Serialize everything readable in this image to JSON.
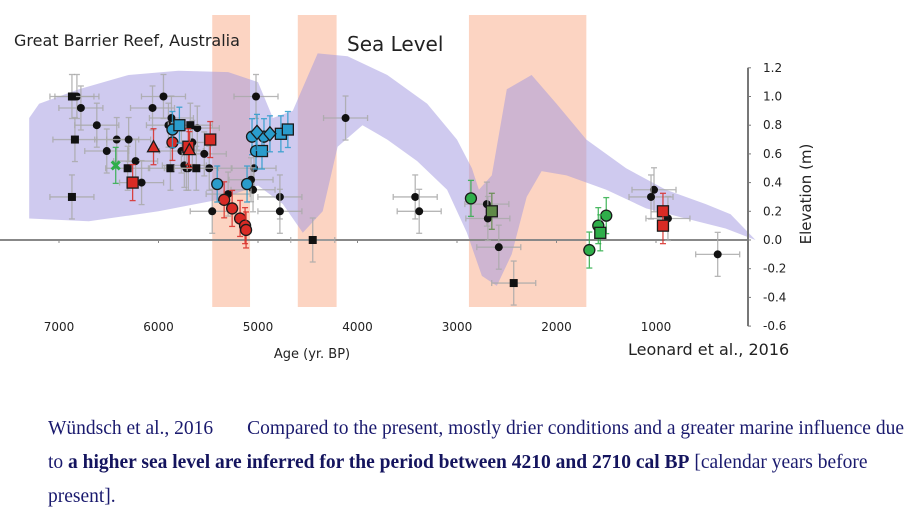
{
  "chart_data": {
    "type": "scatter",
    "title": "Sea Level",
    "region_label": "Great Barrier Reef, Australia",
    "source_label": "Leonard et al., 2016",
    "xlabel": "Age (yr. BP)",
    "ylabel": "Elevation (m)",
    "xlim": [
      7400,
      0
    ],
    "ylim": [
      -0.6,
      1.2
    ],
    "x_ticks": [
      7000,
      6000,
      5000,
      4000,
      3000,
      2000,
      1000
    ],
    "y_ticks": [
      1.2,
      1.0,
      0.8,
      0.6,
      0.4,
      0.2,
      0.0,
      -0.2,
      -0.4,
      -0.6
    ],
    "y_tick_labels": [
      "1.2",
      "1.0",
      "0.8",
      "0.6",
      "0.4",
      "0.2",
      "0.0",
      "-0.2",
      "-0.4",
      "-0.6"
    ],
    "colors": {
      "envelope": "#c9c3ee",
      "highlight": "#fbc9b3",
      "black": "#111111",
      "red": "#d92b25",
      "blue": "#2a9ccc",
      "green": "#2fae4a",
      "olive": "#5f8a47",
      "errorbar_grey": "#aaaaaa",
      "axis": "#777777"
    },
    "highlight_periods": [
      {
        "start": 5460,
        "end": 5080
      },
      {
        "start": 4600,
        "end": 4210
      },
      {
        "start": 2880,
        "end": 1700
      }
    ],
    "sea_level_envelope": {
      "upper": [
        [
          7300,
          0.85
        ],
        [
          7200,
          0.95
        ],
        [
          6800,
          1.05
        ],
        [
          6300,
          1.15
        ],
        [
          5800,
          1.18
        ],
        [
          5300,
          1.17
        ],
        [
          5000,
          1.1
        ],
        [
          4850,
          0.85
        ],
        [
          4650,
          0.9
        ],
        [
          4400,
          1.3
        ],
        [
          4100,
          1.28
        ],
        [
          3700,
          1.15
        ],
        [
          3300,
          0.95
        ],
        [
          3000,
          0.7
        ],
        [
          2850,
          0.5
        ],
        [
          2780,
          0.35
        ],
        [
          2650,
          0.45
        ],
        [
          2500,
          1.05
        ],
        [
          2250,
          1.15
        ],
        [
          2000,
          0.95
        ],
        [
          1700,
          0.7
        ],
        [
          1300,
          0.5
        ],
        [
          900,
          0.35
        ],
        [
          500,
          0.25
        ],
        [
          250,
          0.18
        ],
        [
          0,
          0.0
        ]
      ],
      "lower": [
        [
          0,
          0.0
        ],
        [
          300,
          0.08
        ],
        [
          700,
          0.15
        ],
        [
          1100,
          0.22
        ],
        [
          1500,
          0.35
        ],
        [
          1900,
          0.45
        ],
        [
          2150,
          0.48
        ],
        [
          2300,
          0.3
        ],
        [
          2450,
          -0.1
        ],
        [
          2600,
          -0.32
        ],
        [
          2750,
          -0.25
        ],
        [
          2900,
          0.05
        ],
        [
          3100,
          0.35
        ],
        [
          3400,
          0.55
        ],
        [
          3700,
          0.7
        ],
        [
          3950,
          0.8
        ],
        [
          4200,
          0.65
        ],
        [
          4350,
          0.2
        ],
        [
          4550,
          0.05
        ],
        [
          4750,
          0.25
        ],
        [
          5000,
          0.38
        ],
        [
          5400,
          0.28
        ],
        [
          6000,
          0.2
        ],
        [
          6700,
          0.13
        ],
        [
          7300,
          0.15
        ]
      ]
    },
    "series": [
      {
        "name": "black-circles",
        "marker": "circle",
        "color": "#111111",
        "points": [
          [
            6820,
            1.0
          ],
          [
            6780,
            0.92
          ],
          [
            6620,
            0.8
          ],
          [
            6520,
            0.62
          ],
          [
            6420,
            0.7
          ],
          [
            6300,
            0.7
          ],
          [
            6230,
            0.55
          ],
          [
            6170,
            0.4
          ],
          [
            6060,
            0.92
          ],
          [
            5950,
            1.0
          ],
          [
            5900,
            0.8
          ],
          [
            5870,
            0.85
          ],
          [
            5770,
            0.62
          ],
          [
            5740,
            0.52
          ],
          [
            5720,
            0.5
          ],
          [
            5700,
            0.5
          ],
          [
            5660,
            0.68
          ],
          [
            5610,
            0.78
          ],
          [
            5540,
            0.6
          ],
          [
            5490,
            0.5
          ],
          [
            5020,
            1.0
          ],
          [
            5040,
            0.5
          ],
          [
            5050,
            0.35
          ],
          [
            5070,
            0.42
          ],
          [
            5460,
            0.2
          ],
          [
            5300,
            0.32
          ],
          [
            4780,
            0.3
          ],
          [
            4780,
            0.2
          ],
          [
            4120,
            0.85
          ],
          [
            3420,
            0.3
          ],
          [
            3380,
            0.2
          ],
          [
            2700,
            0.25
          ],
          [
            2690,
            0.15
          ],
          [
            2580,
            -0.05
          ],
          [
            1020,
            0.35
          ],
          [
            1050,
            0.3
          ],
          [
            880,
            0.15
          ],
          [
            380,
            -0.1
          ]
        ]
      },
      {
        "name": "black-squares",
        "marker": "square",
        "color": "#111111",
        "points": [
          [
            6870,
            1.0
          ],
          [
            6840,
            0.7
          ],
          [
            6870,
            0.3
          ],
          [
            6310,
            0.5
          ],
          [
            5880,
            0.5
          ],
          [
            5680,
            0.8
          ],
          [
            5620,
            0.5
          ],
          [
            4450,
            0.0
          ],
          [
            2430,
            -0.3
          ]
        ]
      },
      {
        "name": "red-circles",
        "marker": "circle",
        "color": "#d92b25",
        "points": [
          [
            5860,
            0.68
          ],
          [
            5340,
            0.28
          ],
          [
            5260,
            0.22
          ],
          [
            5180,
            0.15
          ],
          [
            5130,
            0.1
          ],
          [
            5120,
            0.07
          ]
        ]
      },
      {
        "name": "red-squares",
        "marker": "square",
        "color": "#d92b25",
        "points": [
          [
            6260,
            0.4
          ],
          [
            5700,
            0.65
          ],
          [
            5480,
            0.7
          ],
          [
            930,
            0.2
          ],
          [
            930,
            0.1
          ]
        ]
      },
      {
        "name": "red-triangles",
        "marker": "triangle",
        "color": "#d92b25",
        "points": [
          [
            6050,
            0.65
          ],
          [
            5690,
            0.63
          ]
        ]
      },
      {
        "name": "blue-circles",
        "marker": "circle",
        "color": "#2a9ccc",
        "points": [
          [
            5860,
            0.77
          ],
          [
            5410,
            0.39
          ],
          [
            5110,
            0.39
          ],
          [
            5060,
            0.72
          ],
          [
            5020,
            0.62
          ],
          [
            4940,
            0.72
          ]
        ]
      },
      {
        "name": "blue-squares",
        "marker": "square",
        "color": "#2a9ccc",
        "points": [
          [
            5790,
            0.8
          ],
          [
            4960,
            0.62
          ],
          [
            4770,
            0.74
          ],
          [
            4700,
            0.77
          ]
        ]
      },
      {
        "name": "blue-diamonds",
        "marker": "diamond",
        "color": "#2a9ccc",
        "points": [
          [
            5010,
            0.75
          ],
          [
            4880,
            0.74
          ]
        ]
      },
      {
        "name": "green-circles",
        "marker": "circle",
        "color": "#2fae4a",
        "points": [
          [
            2860,
            0.29
          ],
          [
            1670,
            -0.07
          ],
          [
            1580,
            0.1
          ],
          [
            1500,
            0.17
          ]
        ]
      },
      {
        "name": "green-squares",
        "marker": "square",
        "color": "#2fae4a",
        "points": [
          [
            1560,
            0.05
          ]
        ]
      },
      {
        "name": "green-cross",
        "marker": "cross",
        "color": "#2fae4a",
        "points": [
          [
            6430,
            0.52
          ]
        ]
      },
      {
        "name": "olive-squares",
        "marker": "square",
        "color": "#5f8a47",
        "points": [
          [
            2650,
            0.2
          ]
        ]
      }
    ]
  },
  "caption": {
    "citation": "Wündsch et al., 2016",
    "text_plain_1": "Compared to the present, mostly drier conditions and a greater marine influence due to ",
    "text_bold": "a higher sea level are inferred for the period between 4210 and 2710 cal BP",
    "text_plain_2": " [calendar years before present]."
  }
}
